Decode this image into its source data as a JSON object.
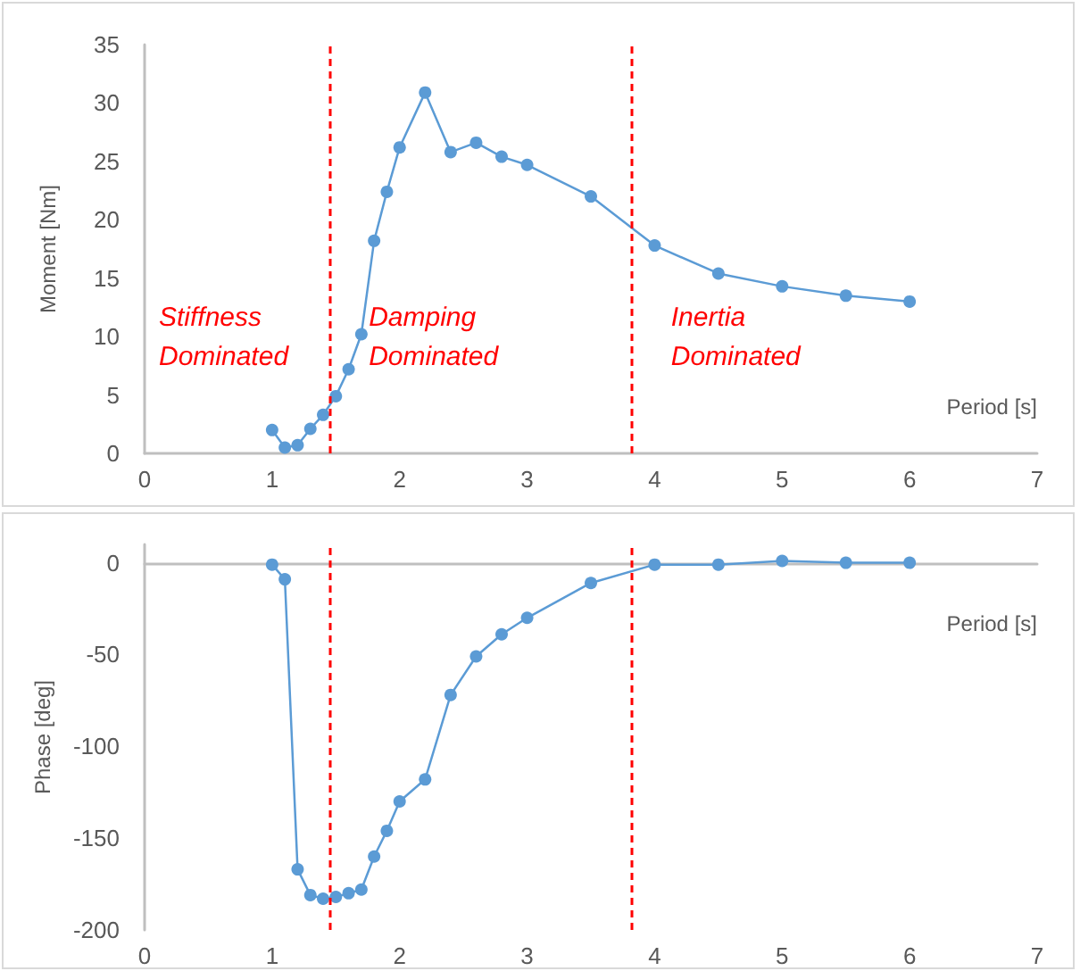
{
  "chart_data": [
    {
      "type": "line",
      "ylabel": "Moment [Nm]",
      "xlabel": "Period [s]",
      "x": [
        1,
        1.1,
        1.2,
        1.3,
        1.4,
        1.5,
        1.6,
        1.7,
        1.8,
        1.9,
        2,
        2.2,
        2.4,
        2.6,
        2.8,
        3,
        3.5,
        4,
        4.5,
        5,
        5.5,
        6
      ],
      "series": [
        {
          "color": "#5b9bd5",
          "values": [
            2.0,
            0.5,
            0.7,
            2.1,
            3.3,
            4.9,
            7.2,
            10.2,
            18.2,
            22.4,
            26.2,
            30.9,
            25.8,
            26.6,
            25.4,
            24.7,
            22.0,
            17.8,
            15.4,
            14.3,
            13.5,
            13.0
          ]
        }
      ],
      "xlim": [
        0,
        7
      ],
      "xticks": [
        0,
        1,
        2,
        3,
        4,
        5,
        6,
        7
      ],
      "ylim": [
        0,
        35
      ],
      "yticks": [
        0,
        5,
        10,
        15,
        20,
        25,
        30,
        35
      ],
      "ref_lines": [
        {
          "axis": "x",
          "value": 1.45,
          "color": "#ff0000",
          "line_style": "dashed"
        },
        {
          "axis": "x",
          "value": 3.82,
          "color": "#ff0000",
          "line_style": "dashed"
        }
      ],
      "annotations": [
        "Stiffness Dominated",
        "Damping Dominated",
        "Inertia Dominated"
      ],
      "grid": false,
      "marker": "circle",
      "line_style": "solid"
    },
    {
      "type": "line",
      "ylabel": "Phase [deg]",
      "xlabel": "Period [s]",
      "x": [
        1,
        1.1,
        1.2,
        1.3,
        1.4,
        1.5,
        1.6,
        1.7,
        1.8,
        1.9,
        2,
        2.2,
        2.4,
        2.6,
        2.8,
        3,
        3.5,
        4,
        4.5,
        5,
        5.5,
        6
      ],
      "series": [
        {
          "color": "#5b9bd5",
          "values": [
            -1,
            -9,
            -167,
            -181,
            -183,
            -182,
            -180,
            -178,
            -160,
            -146,
            -130,
            -118,
            -72,
            -51,
            -39,
            -30,
            -11,
            -1,
            -1,
            1,
            0,
            0
          ]
        }
      ],
      "xlim": [
        0,
        7
      ],
      "xticks": [
        0,
        1,
        2,
        3,
        4,
        5,
        6,
        7
      ],
      "ylim": [
        -200,
        10
      ],
      "yticks": [
        -200,
        -150,
        -100,
        -50,
        0
      ],
      "ref_lines": [
        {
          "axis": "x",
          "value": 1.45,
          "color": "#ff0000",
          "line_style": "dashed"
        },
        {
          "axis": "x",
          "value": 3.82,
          "color": "#ff0000",
          "line_style": "dashed"
        }
      ],
      "marker": "circle",
      "line_style": "solid"
    }
  ]
}
